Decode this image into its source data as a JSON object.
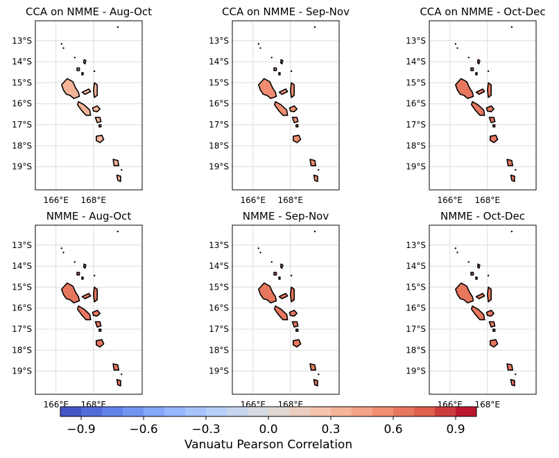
{
  "chart_data": {
    "type": "map",
    "panels": [
      {
        "title": "CCA on NMME - Aug-Oct",
        "level": 0.32
      },
      {
        "title": "CCA on NMME - Sep-Nov",
        "level": 0.55
      },
      {
        "title": "CCA on NMME - Oct-Dec",
        "level": 0.62
      },
      {
        "title": "NMME - Aug-Oct",
        "level": 0.66
      },
      {
        "title": "NMME - Sep-Nov",
        "level": 0.67
      },
      {
        "title": "NMME - Oct-Dec",
        "level": 0.67
      }
    ],
    "lat_ticks": [
      "13°S",
      "14°S",
      "15°S",
      "16°S",
      "17°S",
      "18°S",
      "19°S"
    ],
    "lon_ticks": [
      "166°E",
      "168°E"
    ],
    "colorbar": {
      "label": "Vanuatu Pearson Correlation",
      "range": [
        -1.0,
        1.0
      ],
      "levels": 20,
      "ticks": [
        "−0.9",
        "−0.6",
        "−0.3",
        "0.0",
        "0.3",
        "0.6",
        "0.9"
      ],
      "tick_values": [
        -0.9,
        -0.6,
        -0.3,
        0.0,
        0.3,
        0.6,
        0.9
      ],
      "colormap": "coolwarm"
    }
  }
}
